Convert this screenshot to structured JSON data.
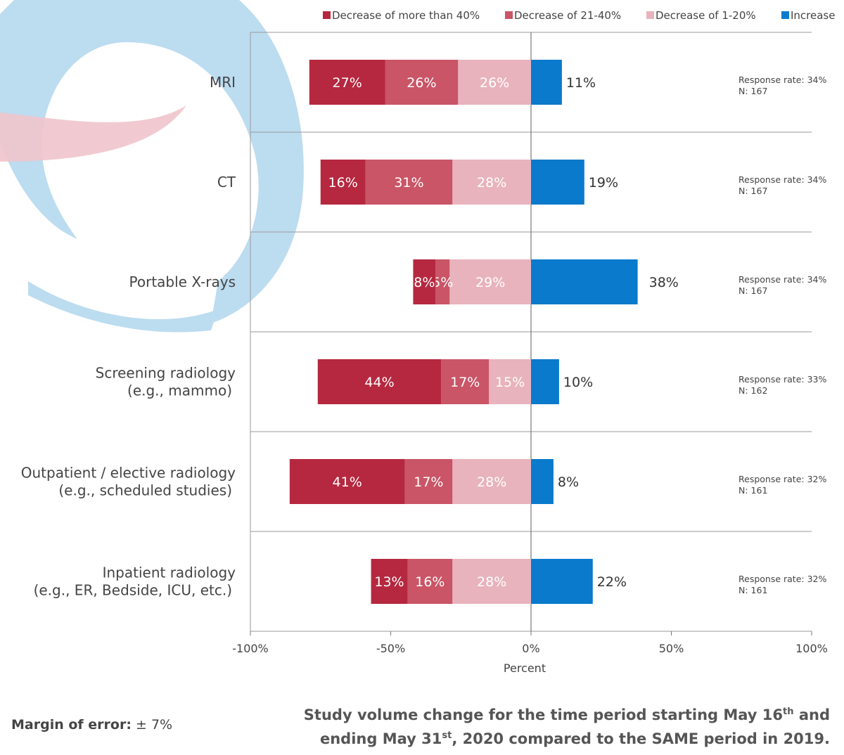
{
  "chart_data": {
    "type": "bar",
    "orientation": "horizontal",
    "stacked": "diverging",
    "title": "",
    "xlabel": "Percent",
    "ylabel": "",
    "xlim": [
      -100,
      100
    ],
    "x_ticks": [
      -100,
      -50,
      0,
      50,
      100
    ],
    "x_tick_labels": [
      "-100%",
      "-50%",
      "0%",
      "50%",
      "100%"
    ],
    "legend_position": "top",
    "grid": false,
    "categories": [
      {
        "label": [
          "MRI"
        ],
        "response_rate": "Response rate: 34%",
        "n": "N: 167"
      },
      {
        "label": [
          "CT"
        ],
        "response_rate": "Response rate: 34%",
        "n": "N: 167"
      },
      {
        "label": [
          "Portable X-rays"
        ],
        "response_rate": "Response rate: 34%",
        "n": "N: 167"
      },
      {
        "label": [
          "Screening radiology",
          "(e.g., mammo)"
        ],
        "response_rate": "Response rate: 33%",
        "n": "N: 162"
      },
      {
        "label": [
          "Outpatient / elective radiology",
          "(e.g., scheduled studies)"
        ],
        "response_rate": "Response rate: 32%",
        "n": "N: 161"
      },
      {
        "label": [
          "Inpatient radiology",
          "(e.g., ER, Bedside, ICU, etc.)"
        ],
        "response_rate": "Response rate: 32%",
        "n": "N: 161"
      }
    ],
    "series": [
      {
        "name": "Decrease of more than 40%",
        "color": "#b5283f",
        "side": "negative",
        "values": [
          27,
          16,
          8,
          44,
          41,
          13
        ]
      },
      {
        "name": "Decrease of 21-40%",
        "color": "#c95567",
        "side": "negative",
        "values": [
          26,
          31,
          5,
          17,
          17,
          16
        ]
      },
      {
        "name": "Decrease of 1-20%",
        "color": "#e8b3bc",
        "side": "negative",
        "values": [
          26,
          28,
          29,
          15,
          28,
          28
        ]
      },
      {
        "name": "Increase",
        "color": "#0a7acc",
        "side": "positive",
        "values": [
          11,
          19,
          38,
          10,
          8,
          22
        ]
      }
    ],
    "value_suffix": "%"
  },
  "footer": {
    "margin_label": "Margin of error:",
    "margin_value": "± 7%",
    "title_line1_pre": "Study volume change for the time period starting May 16",
    "title_line1_sup": "th",
    "title_line1_post": " and",
    "title_line2_pre": "ending May 31",
    "title_line2_sup": "st",
    "title_line2_post": ", 2020 compared to the SAME period in 2019."
  }
}
